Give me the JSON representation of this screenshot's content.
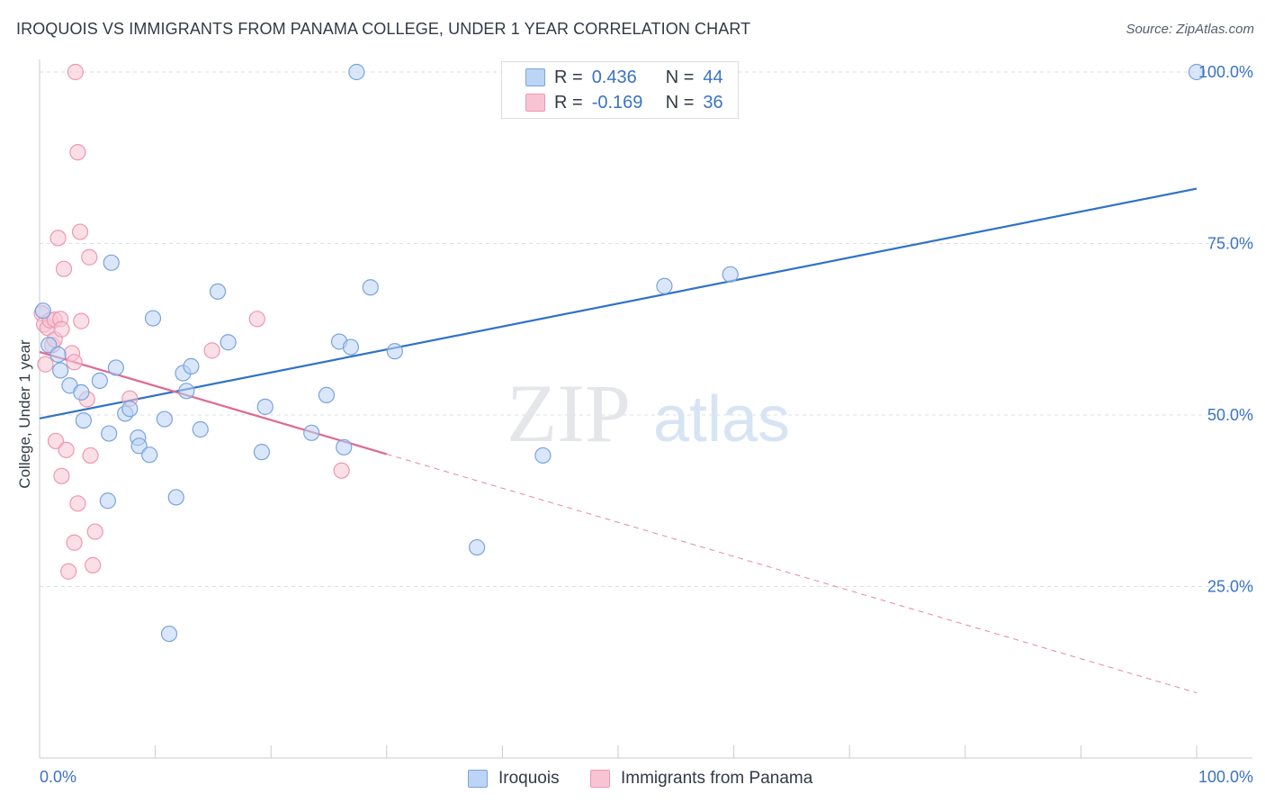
{
  "header": {
    "title": "IROQUOIS VS IMMIGRANTS FROM PANAMA COLLEGE, UNDER 1 YEAR CORRELATION CHART",
    "source": "Source: ZipAtlas.com"
  },
  "legend": {
    "r_label": "R =",
    "n_label": "N =",
    "iroquois": {
      "r": "0.436",
      "n": "44"
    },
    "panama": {
      "r": "-0.169",
      "n": "36"
    }
  },
  "bottom_legend": {
    "iroquois": "Iroquois",
    "panama": "Immigrants from Panama"
  },
  "colors": {
    "iroquois_fill": "#bcd4f5",
    "iroquois_stroke": "#7aa3dc",
    "iroquois_line": "#2f72c9",
    "panama_fill": "#f8c4d3",
    "panama_stroke": "#ee97b1",
    "panama_line": "#e06891",
    "axis_text": "#3a73c4"
  },
  "chart_data": {
    "type": "scatter",
    "title": "IROQUOIS VS IMMIGRANTS FROM PANAMA COLLEGE, UNDER 1 YEAR CORRELATION CHART",
    "xlabel": "",
    "ylabel": "College, Under 1 year",
    "xlim": [
      0,
      100
    ],
    "ylim": [
      0,
      103
    ],
    "x_tick_labels": [
      "0.0%",
      "100.0%"
    ],
    "y_tick_labels": [
      "25.0%",
      "50.0%",
      "75.0%",
      "100.0%"
    ],
    "y_ticks": [
      25,
      50,
      75,
      100
    ],
    "watermark": {
      "zip": "ZIP",
      "atlas": "atlas"
    },
    "series": [
      {
        "name": "Iroquois",
        "r": 0.436,
        "n": 44,
        "points": [
          [
            0.3,
            65.2
          ],
          [
            0.8,
            60.2
          ],
          [
            1.6,
            58.8
          ],
          [
            1.8,
            56.5
          ],
          [
            2.6,
            54.3
          ],
          [
            3.6,
            53.3
          ],
          [
            3.8,
            49.2
          ],
          [
            5.2,
            55.0
          ],
          [
            5.9,
            37.5
          ],
          [
            6.0,
            47.3
          ],
          [
            6.2,
            72.2
          ],
          [
            6.6,
            56.9
          ],
          [
            7.4,
            50.2
          ],
          [
            7.8,
            50.9
          ],
          [
            8.5,
            46.7
          ],
          [
            8.6,
            45.5
          ],
          [
            9.5,
            44.2
          ],
          [
            9.8,
            64.1
          ],
          [
            10.8,
            49.4
          ],
          [
            11.2,
            18.1
          ],
          [
            11.8,
            38.0
          ],
          [
            12.4,
            56.1
          ],
          [
            12.7,
            53.5
          ],
          [
            13.1,
            57.1
          ],
          [
            13.9,
            47.9
          ],
          [
            15.4,
            68.0
          ],
          [
            16.3,
            60.6
          ],
          [
            19.2,
            44.6
          ],
          [
            19.5,
            51.2
          ],
          [
            23.5,
            47.4
          ],
          [
            24.8,
            52.9
          ],
          [
            25.9,
            60.7
          ],
          [
            26.3,
            45.3
          ],
          [
            26.9,
            59.9
          ],
          [
            27.4,
            100.0
          ],
          [
            28.6,
            68.6
          ],
          [
            30.7,
            59.3
          ],
          [
            37.8,
            30.7
          ],
          [
            43.5,
            44.1
          ],
          [
            54.0,
            68.8
          ],
          [
            59.7,
            70.5
          ],
          [
            100.0,
            100.0
          ]
        ],
        "trend": {
          "x": [
            0,
            100
          ],
          "y": [
            49.5,
            83.0
          ]
        }
      },
      {
        "name": "Immigrants from Panama",
        "r": -0.169,
        "n": 36,
        "points": [
          [
            0.2,
            64.8
          ],
          [
            0.4,
            63.2
          ],
          [
            0.5,
            57.4
          ],
          [
            0.7,
            62.7
          ],
          [
            0.9,
            63.8
          ],
          [
            1.1,
            60.2
          ],
          [
            1.3,
            61.0
          ],
          [
            1.3,
            63.9
          ],
          [
            1.4,
            46.2
          ],
          [
            1.6,
            75.8
          ],
          [
            1.8,
            64.0
          ],
          [
            1.9,
            62.5
          ],
          [
            1.9,
            41.1
          ],
          [
            2.1,
            71.3
          ],
          [
            2.3,
            44.9
          ],
          [
            2.5,
            27.2
          ],
          [
            2.8,
            59.0
          ],
          [
            3.0,
            57.7
          ],
          [
            3.0,
            31.4
          ],
          [
            3.1,
            100.0
          ],
          [
            3.3,
            88.3
          ],
          [
            3.3,
            37.1
          ],
          [
            3.5,
            76.7
          ],
          [
            3.6,
            63.7
          ],
          [
            4.1,
            52.3
          ],
          [
            4.3,
            73.0
          ],
          [
            4.4,
            44.1
          ],
          [
            4.6,
            28.1
          ],
          [
            4.8,
            33.0
          ],
          [
            7.8,
            52.4
          ],
          [
            14.9,
            59.4
          ],
          [
            18.8,
            64.0
          ],
          [
            26.1,
            41.9
          ]
        ],
        "trend": {
          "x": [
            0,
            30
          ],
          "y": [
            59.2,
            44.3
          ]
        },
        "trend_extrapolated": {
          "x": [
            30,
            100
          ],
          "y": [
            44.3,
            9.5
          ]
        }
      }
    ]
  }
}
